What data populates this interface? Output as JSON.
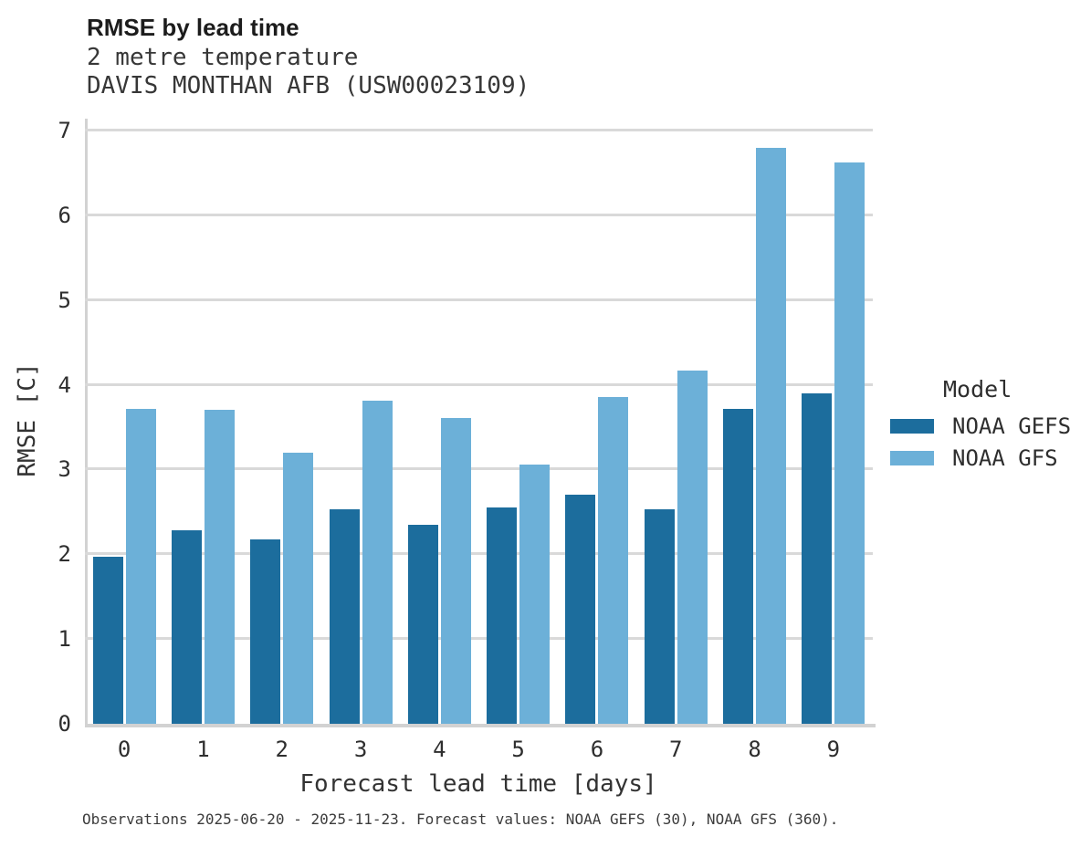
{
  "header": {
    "title": "RMSE by lead time",
    "subtitle_variable": "2 metre temperature",
    "subtitle_station": "DAVIS MONTHAN AFB (USW00023109)"
  },
  "axes": {
    "x_label": "Forecast lead time [days]",
    "y_label": "RMSE [C]"
  },
  "legend": {
    "title": "Model",
    "items": [
      {
        "label": "NOAA GEFS",
        "color": "#1c6d9d"
      },
      {
        "label": "NOAA GFS",
        "color": "#6cb0d8"
      }
    ]
  },
  "footer": {
    "note": "Observations 2025-06-20 - 2025-11-23. Forecast values: NOAA GEFS (30), NOAA GFS (360)."
  },
  "colors": {
    "gefs_bar": "#1c6d9d",
    "gfs_bar": "#6cb0d8",
    "gridline": "#d9d9d9",
    "spine": "#d2d2d2",
    "text": "#2e2e2e"
  },
  "chart_data": {
    "type": "bar",
    "title": "RMSE by lead time",
    "subtitle": [
      "2 metre temperature",
      "DAVIS MONTHAN AFB (USW00023109)"
    ],
    "categories": [
      "0",
      "1",
      "2",
      "3",
      "4",
      "5",
      "6",
      "7",
      "8",
      "9"
    ],
    "series": [
      {
        "name": "NOAA GEFS",
        "color": "#1c6d9d",
        "values": [
          1.97,
          2.28,
          2.18,
          2.53,
          2.35,
          2.55,
          2.7,
          2.53,
          3.72,
          3.9
        ]
      },
      {
        "name": "NOAA GFS",
        "color": "#6cb0d8",
        "values": [
          3.71,
          3.7,
          3.2,
          3.81,
          3.61,
          3.06,
          3.85,
          4.17,
          6.79,
          6.62
        ]
      }
    ],
    "xlabel": "Forecast lead time [days]",
    "ylabel": "RMSE [C]",
    "ylim": [
      0,
      7
    ],
    "yticks": [
      0,
      1,
      2,
      3,
      4,
      5,
      6,
      7
    ],
    "grid": true,
    "legend_title": "Model",
    "legend_position": "right"
  }
}
